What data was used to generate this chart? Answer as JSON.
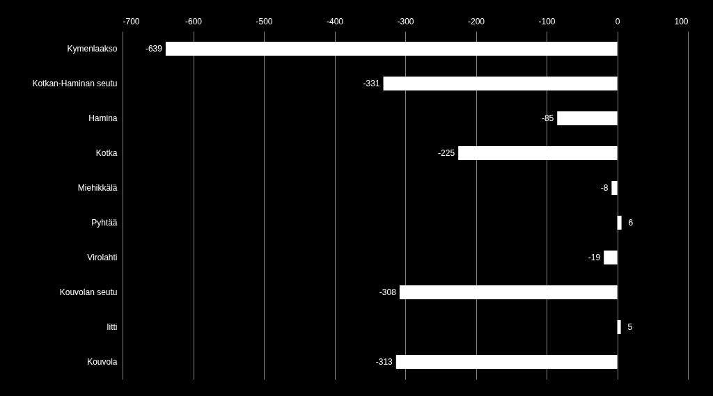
{
  "chart_data": {
    "type": "bar",
    "orientation": "horizontal",
    "categories": [
      "Kymenlaakso",
      "Kotkan-Haminan seutu",
      "Hamina",
      "Kotka",
      "Miehikkälä",
      "Pyhtää",
      "Virolahti",
      "Kouvolan seutu",
      "Iitti",
      "Kouvola"
    ],
    "values": [
      -639,
      -331,
      -85,
      -225,
      -8,
      6,
      -19,
      -308,
      5,
      -313
    ],
    "color": "#ffffff",
    "xlim": [
      -700,
      100
    ],
    "xticks": [
      -700,
      -600,
      -500,
      -400,
      -300,
      -200,
      -100,
      0,
      100
    ],
    "grid": "x",
    "data_labels": true
  }
}
